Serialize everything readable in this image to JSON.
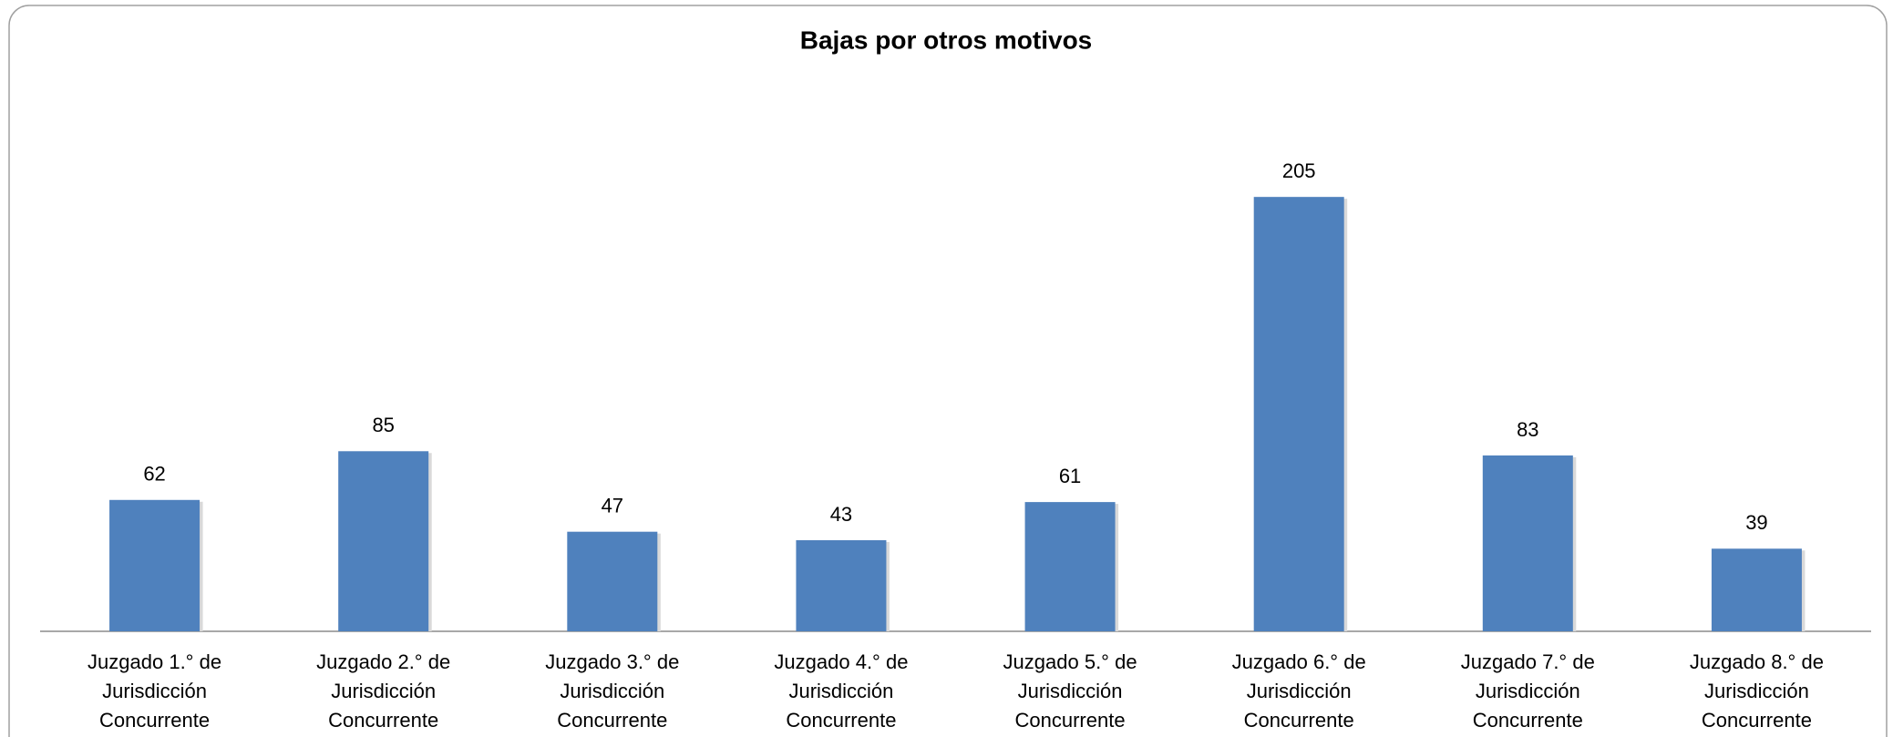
{
  "chart_data": {
    "type": "bar",
    "title": "Bajas por otros motivos",
    "categories": [
      [
        "Juzgado 1.° de",
        "Jurisdicción",
        "Concurrente"
      ],
      [
        "Juzgado 2.° de",
        "Jurisdicción",
        "Concurrente"
      ],
      [
        "Juzgado 3.° de",
        "Jurisdicción",
        "Concurrente"
      ],
      [
        "Juzgado 4.° de",
        "Jurisdicción",
        "Concurrente"
      ],
      [
        "Juzgado 5.° de",
        "Jurisdicción",
        "Concurrente"
      ],
      [
        "Juzgado 6.° de",
        "Jurisdicción",
        "Concurrente"
      ],
      [
        "Juzgado 7.° de",
        "Jurisdicción",
        "Concurrente"
      ],
      [
        "Juzgado 8.° de",
        "Jurisdicción",
        "Concurrente"
      ]
    ],
    "values": [
      62,
      85,
      47,
      43,
      61,
      205,
      83,
      39
    ],
    "color": "#4f81bd"
  }
}
